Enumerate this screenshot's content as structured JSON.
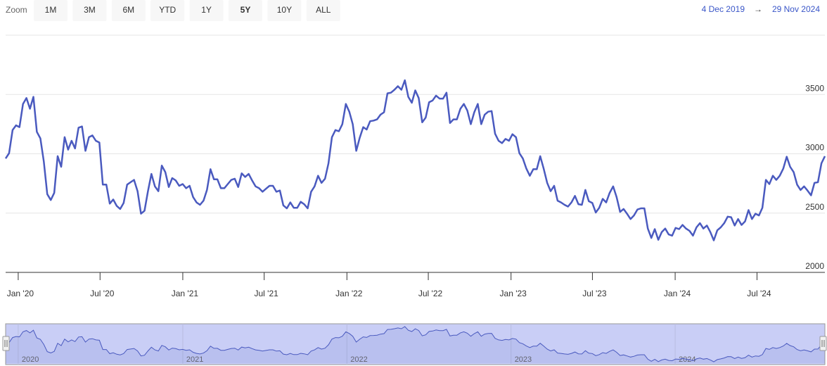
{
  "chart_data": {
    "type": "line",
    "zoom": {
      "label": "Zoom",
      "buttons": [
        "1M",
        "3M",
        "6M",
        "YTD",
        "1Y",
        "5Y",
        "10Y",
        "ALL"
      ],
      "selected": "5Y"
    },
    "range": {
      "from": {
        "value": "2019-12-04",
        "label": "4 Dec 2019"
      },
      "arrow": "→",
      "to": {
        "value": "2024-11-29",
        "label": "29 Nov 2024"
      }
    },
    "ylim": [
      2000,
      4000
    ],
    "yticks": [
      2000,
      2500,
      3000,
      3500
    ],
    "xticks": [
      {
        "value": "2020-01-01",
        "label": "Jan '20"
      },
      {
        "value": "2020-07-01",
        "label": "Jul '20"
      },
      {
        "value": "2021-01-01",
        "label": "Jan '21"
      },
      {
        "value": "2021-07-01",
        "label": "Jul '21"
      },
      {
        "value": "2022-01-01",
        "label": "Jan '22"
      },
      {
        "value": "2022-07-01",
        "label": "Jul '22"
      },
      {
        "value": "2023-01-01",
        "label": "Jan '23"
      },
      {
        "value": "2023-07-01",
        "label": "Jul '23"
      },
      {
        "value": "2024-01-01",
        "label": "Jan '24"
      },
      {
        "value": "2024-07-01",
        "label": "Jul '24"
      }
    ],
    "navigator_ticks": [
      {
        "value": "2020-01-01",
        "label": "2020"
      },
      {
        "value": "2021-01-01",
        "label": "2021"
      },
      {
        "value": "2022-01-01",
        "label": "2022"
      },
      {
        "value": "2023-01-01",
        "label": "2023"
      },
      {
        "value": "2024-01-01",
        "label": "2024"
      }
    ],
    "series": [
      {
        "color": "#4a5abf",
        "values": [
          2960,
          3005,
          3200,
          3240,
          3225,
          3420,
          3470,
          3380,
          3480,
          3185,
          3130,
          2935,
          2660,
          2610,
          2670,
          2980,
          2890,
          3140,
          3035,
          3110,
          3045,
          3220,
          3230,
          3025,
          3140,
          3155,
          3110,
          3095,
          2740,
          2740,
          2580,
          2615,
          2560,
          2535,
          2585,
          2740,
          2760,
          2780,
          2685,
          2495,
          2520,
          2685,
          2830,
          2725,
          2685,
          2900,
          2845,
          2720,
          2795,
          2775,
          2730,
          2745,
          2710,
          2730,
          2635,
          2590,
          2570,
          2605,
          2695,
          2870,
          2785,
          2785,
          2710,
          2710,
          2745,
          2780,
          2790,
          2720,
          2835,
          2805,
          2830,
          2775,
          2725,
          2710,
          2680,
          2705,
          2730,
          2730,
          2680,
          2690,
          2565,
          2540,
          2590,
          2545,
          2545,
          2595,
          2575,
          2540,
          2680,
          2725,
          2815,
          2755,
          2790,
          2920,
          3140,
          3200,
          3190,
          3250,
          3420,
          3355,
          3250,
          3025,
          3135,
          3225,
          3205,
          3275,
          3280,
          3290,
          3330,
          3350,
          3510,
          3515,
          3540,
          3570,
          3540,
          3620,
          3480,
          3430,
          3535,
          3470,
          3265,
          3305,
          3435,
          3450,
          3490,
          3465,
          3465,
          3515,
          3260,
          3290,
          3290,
          3380,
          3420,
          3365,
          3250,
          3350,
          3420,
          3250,
          3330,
          3355,
          3360,
          3170,
          3110,
          3090,
          3125,
          3110,
          3165,
          3140,
          3005,
          2960,
          2875,
          2815,
          2870,
          2870,
          2980,
          2875,
          2755,
          2685,
          2730,
          2605,
          2590,
          2570,
          2555,
          2590,
          2645,
          2575,
          2570,
          2695,
          2600,
          2585,
          2505,
          2545,
          2620,
          2590,
          2670,
          2725,
          2635,
          2510,
          2535,
          2495,
          2450,
          2480,
          2530,
          2540,
          2540,
          2370,
          2290,
          2365,
          2275,
          2340,
          2370,
          2320,
          2310,
          2375,
          2365,
          2400,
          2370,
          2350,
          2310,
          2380,
          2415,
          2370,
          2395,
          2340,
          2270,
          2355,
          2380,
          2415,
          2470,
          2465,
          2395,
          2450,
          2400,
          2430,
          2525,
          2450,
          2495,
          2480,
          2545,
          2780,
          2745,
          2815,
          2780,
          2815,
          2875,
          2975,
          2890,
          2845,
          2740,
          2695,
          2725,
          2690,
          2650,
          2755,
          2760,
          2920,
          2980
        ]
      }
    ]
  }
}
